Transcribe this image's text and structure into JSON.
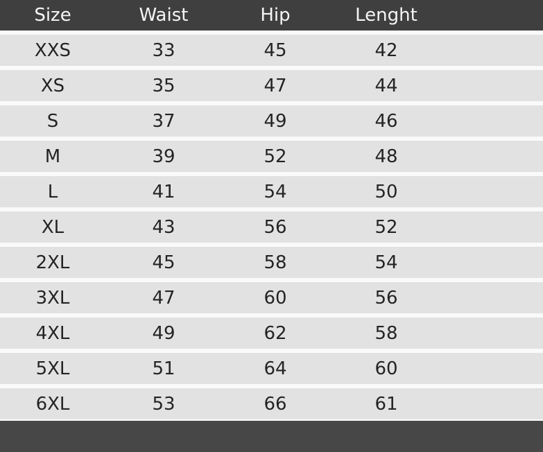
{
  "colors": {
    "header_bg": "#3f3f3f",
    "footer_bg": "#474747",
    "row_bg": "#e2e2e2",
    "gap_bg": "#fafafa",
    "header_text": "#f5f5f5",
    "cell_text": "#242424"
  },
  "table": {
    "headers": [
      "Size",
      "Waist",
      "Hip",
      "Lenght"
    ],
    "rows": [
      {
        "size": "XXS",
        "waist": "33",
        "hip": "45",
        "length": "42"
      },
      {
        "size": "XS",
        "waist": "35",
        "hip": "47",
        "length": "44"
      },
      {
        "size": "S",
        "waist": "37",
        "hip": "49",
        "length": "46"
      },
      {
        "size": "M",
        "waist": "39",
        "hip": "52",
        "length": "48"
      },
      {
        "size": "L",
        "waist": "41",
        "hip": "54",
        "length": "50"
      },
      {
        "size": "XL",
        "waist": "43",
        "hip": "56",
        "length": "52"
      },
      {
        "size": "2XL",
        "waist": "45",
        "hip": "58",
        "length": "54"
      },
      {
        "size": "3XL",
        "waist": "47",
        "hip": "60",
        "length": "56"
      },
      {
        "size": "4XL",
        "waist": "49",
        "hip": "62",
        "length": "58"
      },
      {
        "size": "5XL",
        "waist": "51",
        "hip": "64",
        "length": "60"
      },
      {
        "size": "6XL",
        "waist": "53",
        "hip": "66",
        "length": "61"
      }
    ]
  }
}
